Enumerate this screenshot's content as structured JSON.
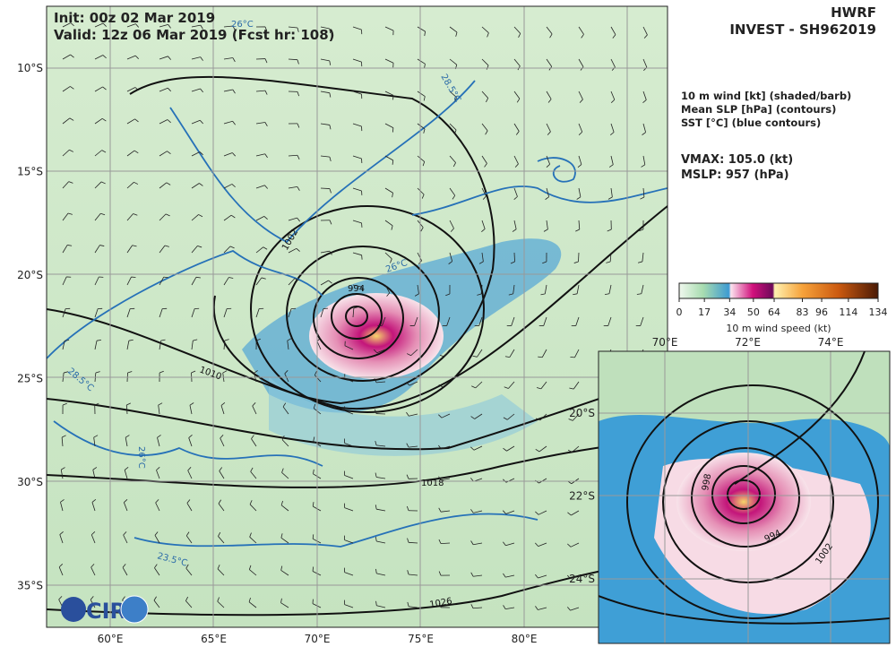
{
  "header": {
    "init": "Init:   00z 02 Mar 2019",
    "valid": "Valid: 12z 06 Mar 2019 (Fcst hr: 108)",
    "model": "HWRF",
    "storm": "INVEST - SH962019"
  },
  "legend": {
    "lines": [
      "10 m wind [kt] (shaded/barb)",
      "Mean SLP [hPa] (contours)",
      "SST [°C] (blue contours)"
    ],
    "vmax": "VMAX: 105.0 (kt)",
    "mslp": "MSLP:  957 (hPa)"
  },
  "colorbar": {
    "ticks": [
      0,
      17,
      34,
      50,
      64,
      83,
      96,
      114,
      134
    ],
    "label": "10 m wind speed (kt)"
  },
  "map": {
    "lat_labels": [
      "10°S",
      "15°S",
      "20°S",
      "25°S",
      "30°S",
      "35°S"
    ],
    "lon_labels": [
      "60°E",
      "65°E",
      "70°E",
      "75°E",
      "80°E"
    ],
    "contour_labels": [
      "1002",
      "994",
      "1010",
      "1018",
      "1026",
      "28.5°C",
      "26°C",
      "23.5°C",
      "28.5°C",
      "26°C",
      "26°C"
    ],
    "logo": "CIRA"
  },
  "inset": {
    "lon_labels": [
      "70°E",
      "72°E",
      "74°E"
    ],
    "lat_labels": [
      "20°S",
      "22°S",
      "24°S"
    ],
    "contour_labels": [
      "998",
      "994",
      "1002"
    ]
  }
}
